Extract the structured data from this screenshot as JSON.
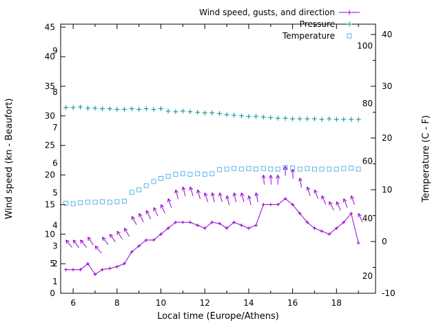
{
  "chart_data": {
    "type": "line",
    "title": "",
    "xlabel": "Local time (Europe/Athens)",
    "ylabel_left": "Wind speed (kn - Beaufort)",
    "ylabel_right": "Temperature (C - F)",
    "x_range": [
      5.43,
      19.78
    ],
    "x_major_ticks": [
      6,
      8,
      10,
      12,
      14,
      16,
      18
    ],
    "x_minor_ticks": [
      7,
      9,
      11,
      13,
      15,
      17,
      19
    ],
    "y_left_range": [
      0,
      45.5
    ],
    "y_left_ticks": [
      0,
      5,
      10,
      15,
      20,
      25,
      30,
      35,
      40,
      45
    ],
    "y_right_range": [
      -10,
      42
    ],
    "y_right_ticks": [
      -10,
      0,
      10,
      20,
      30,
      40
    ],
    "y_right_minor_ticks": [
      -5,
      5,
      15,
      25,
      35
    ],
    "beaufort_labels": [
      {
        "text": "1",
        "kn": 2
      },
      {
        "text": "2",
        "kn": 5
      },
      {
        "text": "3",
        "kn": 8
      },
      {
        "text": "4",
        "kn": 11.5
      },
      {
        "text": "5",
        "kn": 17
      },
      {
        "text": "6",
        "kn": 22
      },
      {
        "text": "7",
        "kn": 28
      },
      {
        "text": "8",
        "kn": 34
      },
      {
        "text": "9",
        "kn": 41
      }
    ],
    "fahrenheit_labels": [
      {
        "text": "20",
        "f": 20
      },
      {
        "text": "40",
        "f": 40
      },
      {
        "text": "60",
        "f": 60
      },
      {
        "text": "80",
        "f": 80
      },
      {
        "text": "100",
        "f": 100
      }
    ],
    "legend": [
      {
        "label": "Wind speed, gusts, and direction",
        "series": "wind",
        "marker": "line-plus"
      },
      {
        "label": "Pressure",
        "series": "pressure",
        "marker": "plus"
      },
      {
        "label": "Temperature",
        "series": "temperature",
        "marker": "square"
      }
    ],
    "x": [
      5.67,
      6,
      6.33,
      6.67,
      7,
      7.33,
      7.67,
      8,
      8.33,
      8.67,
      9,
      9.33,
      9.67,
      10,
      10.33,
      10.67,
      11,
      11.33,
      11.67,
      12,
      12.33,
      12.67,
      13,
      13.33,
      13.67,
      14,
      14.33,
      14.67,
      15,
      15.33,
      15.67,
      16,
      16.33,
      16.67,
      17,
      17.33,
      17.67,
      18,
      18.33,
      18.67,
      19
    ],
    "series": {
      "wind_kn": [
        4,
        4,
        4,
        5,
        3.2,
        4,
        4.2,
        4.5,
        5,
        7,
        8,
        9,
        9,
        10,
        11,
        12,
        12,
        12,
        11.5,
        11,
        12,
        11.8,
        11,
        12,
        11.5,
        11,
        11.5,
        15,
        15,
        15,
        16,
        15,
        13.5,
        12,
        11,
        10.5,
        10,
        11,
        12,
        13.5,
        8.5
      ],
      "gust_kn": [
        9,
        9,
        9,
        9.5,
        8,
        9.5,
        10,
        10.5,
        11,
        13,
        13.5,
        14,
        14.5,
        15,
        16,
        17.5,
        18,
        18,
        17.5,
        17,
        17,
        17,
        16.5,
        17,
        17,
        16.5,
        17,
        20,
        20,
        20,
        21.5,
        21,
        19.5,
        18,
        17.5,
        16.5,
        15.5,
        15.5,
        16,
        16.5,
        13.5
      ],
      "direction_deg": [
        -40,
        -38,
        -40,
        -35,
        -42,
        -38,
        -36,
        -34,
        -32,
        -30,
        -28,
        -28,
        -26,
        -25,
        -20,
        -15,
        -15,
        -18,
        -16,
        -18,
        -15,
        -16,
        -15,
        -12,
        -15,
        -14,
        -12,
        -5,
        -3,
        0,
        0,
        -3,
        -10,
        -18,
        -22,
        -25,
        -28,
        -25,
        -22,
        -20,
        -25
      ],
      "pressure_display": [
        31.4,
        31.4,
        31.5,
        31.3,
        31.3,
        31.2,
        31.2,
        31.1,
        31.1,
        31.2,
        31.1,
        31.2,
        31.1,
        31.2,
        30.8,
        30.7,
        30.8,
        30.7,
        30.6,
        30.5,
        30.5,
        30.4,
        30.2,
        30.1,
        30,
        29.9,
        29.9,
        29.8,
        29.7,
        29.6,
        29.6,
        29.5,
        29.5,
        29.5,
        29.5,
        29.4,
        29.5,
        29.4,
        29.4,
        29.4,
        29.4
      ],
      "temperature_c": [
        7.4,
        7.3,
        7.5,
        7.6,
        7.6,
        7.7,
        7.6,
        7.7,
        7.8,
        9.5,
        10,
        10.8,
        11.6,
        12.2,
        12.6,
        13,
        13.1,
        13,
        13.1,
        13,
        13.1,
        13.9,
        14,
        14.1,
        14,
        14.1,
        14,
        14.1,
        14,
        14,
        14.3,
        14.2,
        14,
        14.1,
        14,
        14,
        14,
        14,
        14.1,
        14.2,
        14
      ]
    },
    "colors": {
      "wind": "#9400d3",
      "pressure": "#008b8b",
      "temperature": "#56b4e9",
      "axis": "#000000",
      "background": "#ffffff"
    },
    "legend_position": "top-right",
    "grid": false
  }
}
